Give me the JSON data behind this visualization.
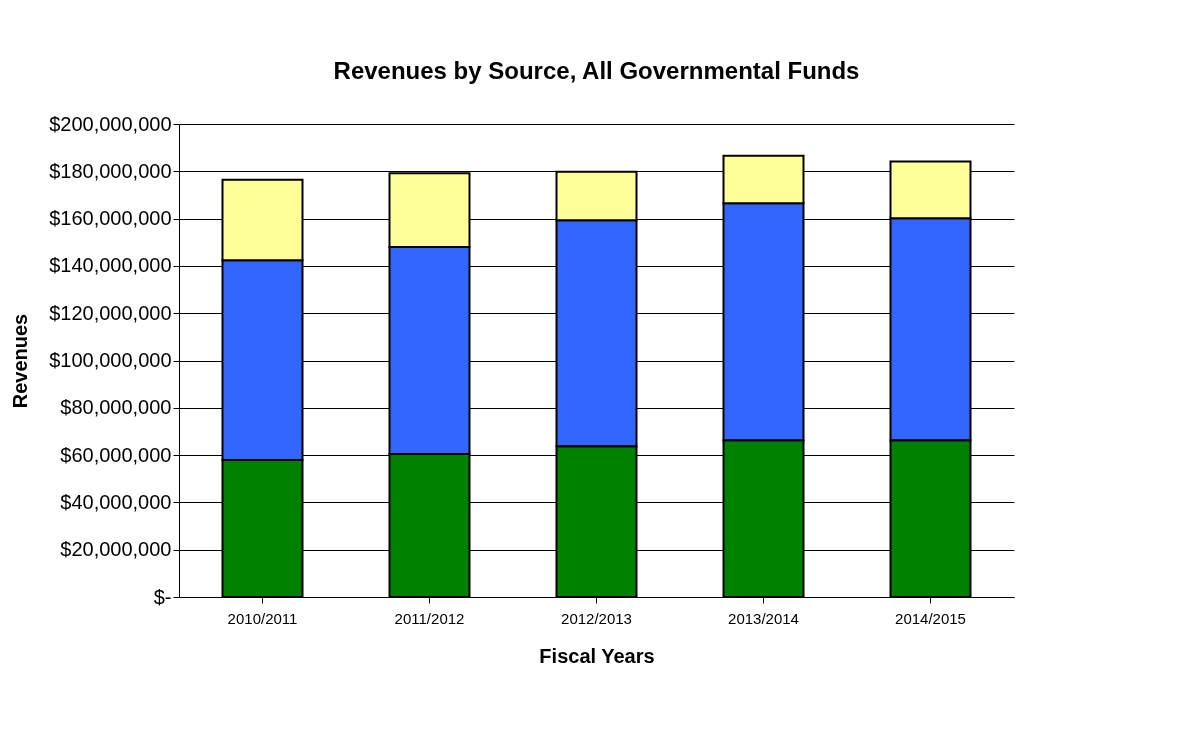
{
  "chart_data": {
    "type": "bar",
    "title": "Revenues by Source, All Governmental Funds",
    "xlabel": "Fiscal Years",
    "ylabel": "Revenues",
    "categories": [
      "2010/2011",
      "2011/2012",
      "2012/2013",
      "2013/2014",
      "2014/2015"
    ],
    "stacked": true,
    "series": [
      {
        "color": "#008000",
        "values": [
          57900000,
          60500000,
          63700000,
          66300000,
          66300000
        ]
      },
      {
        "color": "#3366ff",
        "values": [
          84500000,
          87500000,
          95600000,
          100200000,
          93800000
        ]
      },
      {
        "color": "#ffff99",
        "values": [
          34000000,
          31200000,
          20500000,
          20100000,
          24000000
        ]
      }
    ],
    "ylim": [
      0,
      200000000
    ],
    "yticks": [
      {
        "value": 0,
        "label": "$-"
      },
      {
        "value": 20000000,
        "label": "$20,000,000"
      },
      {
        "value": 40000000,
        "label": "$40,000,000"
      },
      {
        "value": 60000000,
        "label": "$60,000,000"
      },
      {
        "value": 80000000,
        "label": "$80,000,000"
      },
      {
        "value": 100000000,
        "label": "$100,000,000"
      },
      {
        "value": 120000000,
        "label": "$120,000,000"
      },
      {
        "value": 140000000,
        "label": "$140,000,000"
      },
      {
        "value": 160000000,
        "label": "$160,000,000"
      },
      {
        "value": 180000000,
        "label": "$180,000,000"
      },
      {
        "value": 200000000,
        "label": "$200,000,000"
      }
    ],
    "grid": "y",
    "legend": false
  }
}
